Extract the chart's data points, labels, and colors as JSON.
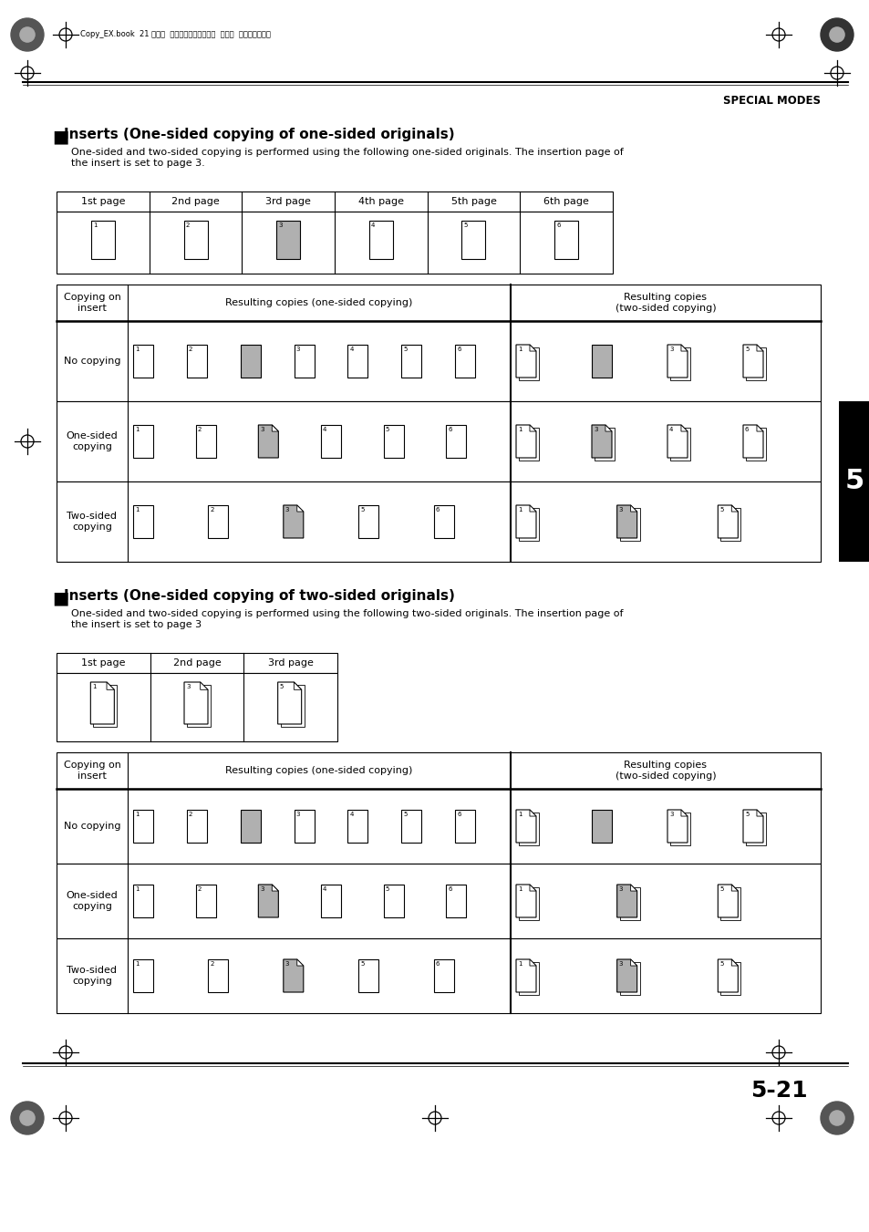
{
  "page_bg": "#ffffff",
  "header_text": "Copy_EX.book  21 ページ  ２００４年９月２８日  火曜日  午後９時５４分",
  "special_modes_text": "SPECIAL MODES",
  "section1_title": "Inserts (One-sided copying of one-sided originals)",
  "section1_body": "One-sided and two-sided copying is performed using the following one-sided originals. The insertion page of\nthe insert is set to page 3.",
  "section1_pages": [
    "1st page",
    "2nd page",
    "3rd page",
    "4th page",
    "5th page",
    "6th page"
  ],
  "section2_title": "Inserts (One-sided copying of two-sided originals)",
  "section2_body": "One-sided and two-sided copying is performed using the following two-sided originals. The insertion page of\nthe insert is set to page 3",
  "section2_pages": [
    "1st page",
    "2nd page",
    "3rd page"
  ],
  "table_col1": "Copying on\ninsert",
  "table_col2": "Resulting copies (one-sided copying)",
  "table_col3": "Resulting copies\n(two-sided copying)",
  "chapter_num": "5",
  "page_num": "5-21",
  "gray_color": "#b0b0b0"
}
